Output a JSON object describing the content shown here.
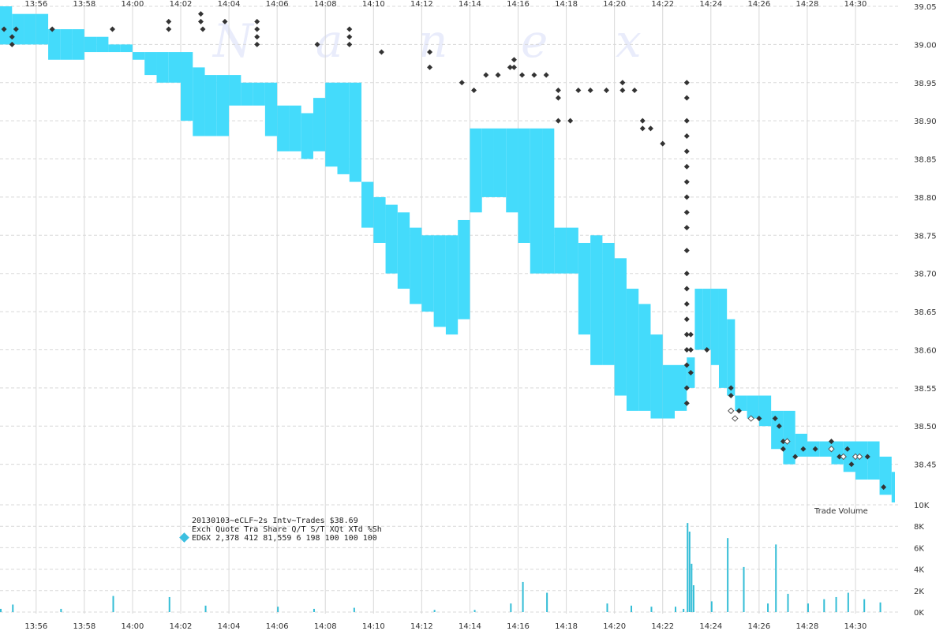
{
  "watermark": [
    "N",
    "a",
    "n",
    "e",
    "x"
  ],
  "info": {
    "header": "20130103~eCLF~2s Intv~Trades $38.69",
    "columns": "Exch Quote Tra  Share  Q/T   S/T  XQt XTd %Sh",
    "row": "EDGX 2,378 412 81,559     6   198 100 100 100",
    "marker_color": "#3bbfe0"
  },
  "colors": {
    "quote_band": "#44dbfb",
    "trade_marker": "#333333",
    "trade_marker_hollow": "#ffffff",
    "volume_bar": "#33bdd6",
    "grid": "#d8d8d8"
  },
  "chart_data": {
    "type": "line",
    "x_axis": {
      "range": [
        "13:54:30",
        "14:31:50"
      ],
      "tick_labels": [
        "13:56",
        "13:58",
        "14:00",
        "14:02",
        "14:04",
        "14:06",
        "14:08",
        "14:10",
        "14:12",
        "14:14",
        "14:16",
        "14:18",
        "14:20",
        "14:22",
        "14:24",
        "14:26",
        "14:28",
        "14:30"
      ]
    },
    "price_axis": {
      "range": [
        38.4,
        39.05
      ],
      "tick_labels": [
        "39.05",
        "39.00",
        "38.95",
        "38.90",
        "38.85",
        "38.80",
        "38.75",
        "38.70",
        "38.65",
        "38.60",
        "38.55",
        "38.50",
        "38.45"
      ]
    },
    "volume_axis": {
      "label": "Trade Volume",
      "range": [
        0,
        10000
      ],
      "tick_labels": [
        "10K",
        "8K",
        "6K",
        "4K",
        "2K",
        "0K"
      ]
    },
    "grid": true,
    "quote_band": {
      "times": [
        "13:54:30",
        "13:55:00",
        "13:55:30",
        "13:56:00",
        "13:56:30",
        "13:57:00",
        "13:57:30",
        "13:58:00",
        "13:58:30",
        "13:59:00",
        "13:59:30",
        "14:00:00",
        "14:00:30",
        "14:01:00",
        "14:01:30",
        "14:02:00",
        "14:02:30",
        "14:03:00",
        "14:03:30",
        "14:04:00",
        "14:04:30",
        "14:05:00",
        "14:05:30",
        "14:06:00",
        "14:06:30",
        "14:07:00",
        "14:07:30",
        "14:08:00",
        "14:08:30",
        "14:09:00",
        "14:09:30",
        "14:10:00",
        "14:10:30",
        "14:11:00",
        "14:11:30",
        "14:12:00",
        "14:12:30",
        "14:13:00",
        "14:13:30",
        "14:14:00",
        "14:14:30",
        "14:15:00",
        "14:15:30",
        "14:16:00",
        "14:16:30",
        "14:17:00",
        "14:17:30",
        "14:18:00",
        "14:18:30",
        "14:19:00",
        "14:19:30",
        "14:20:00",
        "14:20:30",
        "14:21:00",
        "14:21:30",
        "14:22:00",
        "14:22:30",
        "14:23:00",
        "14:23:20",
        "14:23:40",
        "14:24:00",
        "14:24:20",
        "14:24:40",
        "14:25:00",
        "14:25:30",
        "14:26:00",
        "14:26:30",
        "14:27:00",
        "14:27:30",
        "14:28:00",
        "14:28:30",
        "14:29:00",
        "14:29:30",
        "14:30:00",
        "14:30:30",
        "14:31:00",
        "14:31:30"
      ],
      "high": [
        39.05,
        39.04,
        39.04,
        39.04,
        39.02,
        39.02,
        39.02,
        39.01,
        39.01,
        39.0,
        39.0,
        38.99,
        38.99,
        38.99,
        38.99,
        38.99,
        38.97,
        38.96,
        38.96,
        38.96,
        38.95,
        38.95,
        38.95,
        38.92,
        38.92,
        38.91,
        38.93,
        38.95,
        38.95,
        38.95,
        38.82,
        38.8,
        38.79,
        38.78,
        38.76,
        38.75,
        38.75,
        38.75,
        38.77,
        38.89,
        38.89,
        38.89,
        38.89,
        38.89,
        38.89,
        38.89,
        38.76,
        38.76,
        38.74,
        38.75,
        38.74,
        38.72,
        38.68,
        38.66,
        38.62,
        38.58,
        38.58,
        38.59,
        38.68,
        38.68,
        38.68,
        38.68,
        38.64,
        38.54,
        38.54,
        38.54,
        38.52,
        38.52,
        38.49,
        38.48,
        38.48,
        38.48,
        38.48,
        38.48,
        38.48,
        38.46,
        38.44
      ],
      "low": [
        39.0,
        39.0,
        39.0,
        39.0,
        38.98,
        38.98,
        38.98,
        38.99,
        38.99,
        38.99,
        38.99,
        38.98,
        38.96,
        38.95,
        38.95,
        38.9,
        38.88,
        38.88,
        38.88,
        38.92,
        38.92,
        38.92,
        38.88,
        38.86,
        38.86,
        38.85,
        38.86,
        38.84,
        38.83,
        38.82,
        38.76,
        38.74,
        38.7,
        38.68,
        38.66,
        38.65,
        38.63,
        38.62,
        38.64,
        38.78,
        38.8,
        38.8,
        38.78,
        38.74,
        38.7,
        38.7,
        38.7,
        38.7,
        38.62,
        38.58,
        38.58,
        38.54,
        38.52,
        38.52,
        38.51,
        38.51,
        38.52,
        38.55,
        38.6,
        38.6,
        38.58,
        38.55,
        38.54,
        38.52,
        38.51,
        38.5,
        38.47,
        38.45,
        38.46,
        38.46,
        38.46,
        38.45,
        38.44,
        38.43,
        38.43,
        38.41,
        38.4
      ]
    },
    "trades": [
      {
        "t": "13:54:40",
        "p": 39.02
      },
      {
        "t": "13:55:00",
        "p": 39.01
      },
      {
        "t": "13:55:00",
        "p": 39.0
      },
      {
        "t": "13:55:10",
        "p": 39.02
      },
      {
        "t": "13:56:40",
        "p": 39.02
      },
      {
        "t": "13:59:10",
        "p": 39.02
      },
      {
        "t": "14:01:30",
        "p": 39.03
      },
      {
        "t": "14:01:30",
        "p": 39.02
      },
      {
        "t": "14:02:50",
        "p": 39.04
      },
      {
        "t": "14:02:50",
        "p": 39.03
      },
      {
        "t": "14:02:55",
        "p": 39.02
      },
      {
        "t": "14:03:50",
        "p": 39.03
      },
      {
        "t": "14:05:10",
        "p": 39.03
      },
      {
        "t": "14:05:10",
        "p": 39.02
      },
      {
        "t": "14:05:10",
        "p": 39.01
      },
      {
        "t": "14:05:10",
        "p": 39.0
      },
      {
        "t": "14:07:40",
        "p": 39.0
      },
      {
        "t": "14:09:00",
        "p": 39.02
      },
      {
        "t": "14:09:00",
        "p": 39.01
      },
      {
        "t": "14:09:00",
        "p": 39.0
      },
      {
        "t": "14:10:20",
        "p": 38.99
      },
      {
        "t": "14:12:20",
        "p": 38.99
      },
      {
        "t": "14:12:20",
        "p": 38.97
      },
      {
        "t": "14:13:40",
        "p": 38.95
      },
      {
        "t": "14:14:10",
        "p": 38.94
      },
      {
        "t": "14:14:40",
        "p": 38.96
      },
      {
        "t": "14:15:10",
        "p": 38.96
      },
      {
        "t": "14:15:40",
        "p": 38.97
      },
      {
        "t": "14:15:50",
        "p": 38.98
      },
      {
        "t": "14:15:50",
        "p": 38.97
      },
      {
        "t": "14:16:10",
        "p": 38.96
      },
      {
        "t": "14:16:40",
        "p": 38.96
      },
      {
        "t": "14:17:10",
        "p": 38.96
      },
      {
        "t": "14:17:40",
        "p": 38.94
      },
      {
        "t": "14:17:40",
        "p": 38.93
      },
      {
        "t": "14:17:40",
        "p": 38.9
      },
      {
        "t": "14:18:10",
        "p": 38.9
      },
      {
        "t": "14:18:30",
        "p": 38.94
      },
      {
        "t": "14:19:00",
        "p": 38.94
      },
      {
        "t": "14:19:40",
        "p": 38.94
      },
      {
        "t": "14:20:20",
        "p": 38.95
      },
      {
        "t": "14:20:20",
        "p": 38.94
      },
      {
        "t": "14:20:50",
        "p": 38.94
      },
      {
        "t": "14:21:10",
        "p": 38.9
      },
      {
        "t": "14:21:10",
        "p": 38.89
      },
      {
        "t": "14:21:30",
        "p": 38.89
      },
      {
        "t": "14:22:00",
        "p": 38.87
      },
      {
        "t": "14:23:00",
        "p": 38.95
      },
      {
        "t": "14:23:00",
        "p": 38.93
      },
      {
        "t": "14:23:00",
        "p": 38.9
      },
      {
        "t": "14:23:00",
        "p": 38.88
      },
      {
        "t": "14:23:00",
        "p": 38.86
      },
      {
        "t": "14:23:00",
        "p": 38.84
      },
      {
        "t": "14:23:00",
        "p": 38.82
      },
      {
        "t": "14:23:00",
        "p": 38.8
      },
      {
        "t": "14:23:00",
        "p": 38.78
      },
      {
        "t": "14:23:00",
        "p": 38.76
      },
      {
        "t": "14:23:00",
        "p": 38.73
      },
      {
        "t": "14:23:00",
        "p": 38.7
      },
      {
        "t": "14:23:00",
        "p": 38.68
      },
      {
        "t": "14:23:00",
        "p": 38.66
      },
      {
        "t": "14:23:00",
        "p": 38.64
      },
      {
        "t": "14:23:00",
        "p": 38.62
      },
      {
        "t": "14:23:00",
        "p": 38.6
      },
      {
        "t": "14:23:00",
        "p": 38.58
      },
      {
        "t": "14:23:00",
        "p": 38.55
      },
      {
        "t": "14:23:00",
        "p": 38.53
      },
      {
        "t": "14:23:10",
        "p": 38.62
      },
      {
        "t": "14:23:10",
        "p": 38.6
      },
      {
        "t": "14:23:10",
        "p": 38.57
      },
      {
        "t": "14:23:50",
        "p": 38.6
      },
      {
        "t": "14:24:50",
        "p": 38.55
      },
      {
        "t": "14:24:50",
        "p": 38.54
      },
      {
        "t": "14:25:10",
        "p": 38.52
      },
      {
        "t": "14:25:40",
        "p": 38.51
      },
      {
        "t": "14:26:00",
        "p": 38.51
      },
      {
        "t": "14:26:40",
        "p": 38.51
      },
      {
        "t": "14:26:50",
        "p": 38.5
      },
      {
        "t": "14:27:00",
        "p": 38.48
      },
      {
        "t": "14:27:00",
        "p": 38.47
      },
      {
        "t": "14:27:30",
        "p": 38.46
      },
      {
        "t": "14:27:50",
        "p": 38.47
      },
      {
        "t": "14:28:20",
        "p": 38.47
      },
      {
        "t": "14:29:00",
        "p": 38.48
      },
      {
        "t": "14:29:20",
        "p": 38.46
      },
      {
        "t": "14:29:40",
        "p": 38.47
      },
      {
        "t": "14:29:50",
        "p": 38.45
      },
      {
        "t": "14:30:00",
        "p": 38.46
      },
      {
        "t": "14:30:30",
        "p": 38.46
      },
      {
        "t": "14:31:10",
        "p": 38.42
      }
    ],
    "hollow_trades": [
      {
        "t": "14:24:50",
        "p": 38.52
      },
      {
        "t": "14:25:00",
        "p": 38.51
      },
      {
        "t": "14:25:40",
        "p": 38.51
      },
      {
        "t": "14:27:10",
        "p": 38.48
      },
      {
        "t": "14:29:00",
        "p": 38.47
      },
      {
        "t": "14:29:30",
        "p": 38.46
      },
      {
        "t": "14:30:00",
        "p": 38.46
      },
      {
        "t": "14:30:10",
        "p": 38.46
      }
    ],
    "volume": {
      "times": [
        "13:54:30",
        "13:55:00",
        "13:57:00",
        "13:59:10",
        "14:01:30",
        "14:03:00",
        "14:06:00",
        "14:07:30",
        "14:09:10",
        "14:12:30",
        "14:14:10",
        "14:15:40",
        "14:16:10",
        "14:17:10",
        "14:19:40",
        "14:20:40",
        "14:21:30",
        "14:22:30",
        "14:22:50",
        "14:23:00",
        "14:23:05",
        "14:23:10",
        "14:23:15",
        "14:24:00",
        "14:24:40",
        "14:25:20",
        "14:26:20",
        "14:26:40",
        "14:27:10",
        "14:28:00",
        "14:28:40",
        "14:29:10",
        "14:29:40",
        "14:30:20",
        "14:31:00"
      ],
      "values": [
        300,
        700,
        300,
        1500,
        1400,
        600,
        500,
        300,
        400,
        200,
        200,
        800,
        2800,
        1800,
        800,
        600,
        500,
        500,
        300,
        8300,
        7500,
        4500,
        2500,
        1000,
        6900,
        4200,
        800,
        6300,
        1700,
        800,
        1200,
        1400,
        1800,
        1200,
        900
      ]
    }
  }
}
